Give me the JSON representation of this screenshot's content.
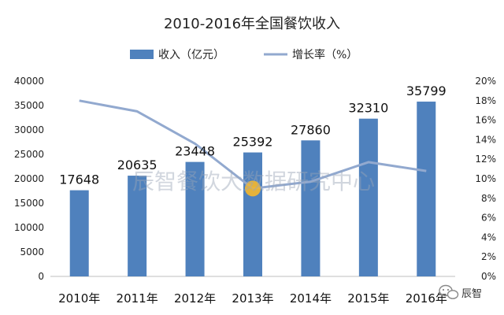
{
  "chart_data": {
    "type": "bar+line",
    "title": "2010-2016年全国餐饮收入",
    "categories": [
      "2010年",
      "2011年",
      "2012年",
      "2013年",
      "2014年",
      "2015年",
      "2016年"
    ],
    "series": [
      {
        "name": "收入（亿元）",
        "type": "bar",
        "axis": "left",
        "values": [
          17648,
          20635,
          23448,
          25392,
          27860,
          32310,
          35799
        ],
        "color": "#4f81bd"
      },
      {
        "name": "增长率（%）",
        "type": "line",
        "axis": "right",
        "values": [
          18.0,
          16.9,
          13.6,
          9.0,
          9.7,
          11.7,
          10.8
        ],
        "color": "#92a9cf"
      }
    ],
    "y_left": {
      "min": 0,
      "max": 40000,
      "step": 5000,
      "tick_labels": [
        "0",
        "5000",
        "10000",
        "15000",
        "20000",
        "25000",
        "30000",
        "35000",
        "40000"
      ]
    },
    "y_right": {
      "min": 0,
      "max": 20,
      "step": 2,
      "tick_labels": [
        "0%",
        "2%",
        "4%",
        "6%",
        "8%",
        "10%",
        "12%",
        "14%",
        "16%",
        "18%",
        "20%"
      ]
    },
    "legend_position": "top",
    "grid": false,
    "highlight_marker": {
      "category": "2013年",
      "color": "#f5b72b"
    }
  },
  "watermark": "辰智餐饮大数据研究中心",
  "brand": {
    "name": "辰智",
    "icon": "wechat-icon"
  }
}
